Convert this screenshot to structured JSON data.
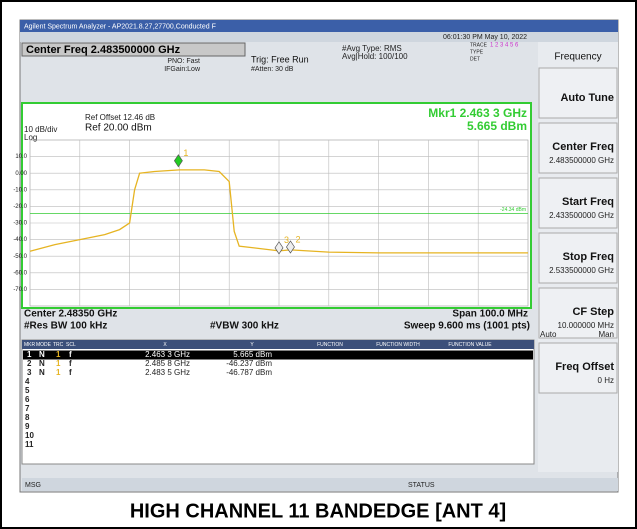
{
  "window": {
    "title": "Agilent Spectrum Analyzer - AP2021.8.27,27700,Conducted F",
    "datetime": "06:01:30 PM May 10, 2022"
  },
  "header": {
    "center": "Center Freq 2.483500000 GHz",
    "pno": "PNO: Fast",
    "ifgain": "IFGain:Low",
    "trig": "Trig: Free Run",
    "atten": "#Atten: 30 dB",
    "avg_type": "#Avg Type: RMS",
    "avg_hold": "Avg|Hold: 100/100",
    "trace": "TRACE",
    "type": "TYPE",
    "det": "DET",
    "trace_nums": "1 2 3 4 5 6"
  },
  "menu": {
    "title": "Frequency",
    "items": [
      {
        "label": "Auto Tune"
      },
      {
        "label": "Center Freq",
        "value": "2.483500000 GHz"
      },
      {
        "label": "Start Freq",
        "value": "2.433500000 GHz"
      },
      {
        "label": "Stop Freq",
        "value": "2.533500000 GHz"
      },
      {
        "label": "CF Step",
        "value": "10.000000 MHz",
        "auto": "Auto",
        "man": "Man"
      },
      {
        "label": "Freq Offset",
        "value": "0 Hz"
      }
    ]
  },
  "plot": {
    "ref_offset": "Ref Offset 12.46 dB",
    "scale": "10 dB/div",
    "log": "Log",
    "ref": "Ref 20.00 dBm",
    "mkr_freq": "Mkr1 2.463 3 GHz",
    "mkr_level": "5.665 dBm",
    "display_line": "-24.34 dBm",
    "display_line_level": -24.34,
    "xlim": [
      2.4335,
      2.5335
    ],
    "ylim": [
      -80,
      20
    ],
    "yticks": [
      {
        "value": 10,
        "label": "10.0"
      },
      {
        "value": 0,
        "label": "0.00"
      },
      {
        "value": -10,
        "label": "-10.0"
      },
      {
        "value": -20,
        "label": "-20.0"
      },
      {
        "value": -30,
        "label": "-30.0"
      },
      {
        "value": -40,
        "label": "-40.0"
      },
      {
        "value": -50,
        "label": "-50.0"
      },
      {
        "value": -60,
        "label": "-60.0"
      },
      {
        "value": -70,
        "label": "-70.0"
      }
    ],
    "trace_x": [
      2.4335,
      2.4385,
      2.4435,
      2.4485,
      2.4515,
      2.4535,
      2.4545,
      2.4555,
      2.4585,
      2.4635,
      2.4685,
      2.4715,
      2.4735,
      2.4745,
      2.4755,
      2.4785,
      2.4835,
      2.4858,
      2.4935,
      2.5035,
      2.5135,
      2.5235,
      2.5335
    ],
    "trace_y": [
      -47,
      -43,
      -40,
      -37,
      -34,
      -30,
      -10,
      0,
      1,
      2,
      2,
      1,
      -5,
      -35,
      -44,
      -45,
      -46.8,
      -46.2,
      -47.5,
      -48,
      -48,
      -48,
      -48
    ],
    "center": "Center 2.48350 GHz",
    "span": "Span 100.0 MHz",
    "rbw": "#Res BW 100 kHz",
    "vbw": "#VBW 300 kHz",
    "sweep": "Sweep 9.600 ms (1001 pts)"
  },
  "table": {
    "headers": [
      "MKR",
      "MODE",
      "TRC",
      "SCL",
      "X",
      "Y",
      "FUNCTION",
      "FUNCTION WIDTH",
      "FUNCTION VALUE"
    ],
    "rows": [
      {
        "n": "1",
        "mode": "N",
        "trc": "1",
        "scl": "f",
        "x": "2.463 3 GHz",
        "y": "5.665 dBm",
        "freq": 2.4633,
        "level": 5.665
      },
      {
        "n": "2",
        "mode": "N",
        "trc": "1",
        "scl": "f",
        "x": "2.485 8 GHz",
        "y": "-46.237 dBm",
        "freq": 2.4858,
        "level": -46.237
      },
      {
        "n": "3",
        "mode": "N",
        "trc": "1",
        "scl": "f",
        "x": "2.483 5 GHz",
        "y": "-46.787 dBm",
        "freq": 2.4835,
        "level": -46.787
      }
    ],
    "empty_rows": [
      "4",
      "5",
      "6",
      "7",
      "8",
      "9",
      "10",
      "11"
    ]
  },
  "status": {
    "msg": "MSG",
    "status": "STATUS"
  },
  "caption": "HIGH CHANNEL 11 BANDEDGE [ANT 4]"
}
